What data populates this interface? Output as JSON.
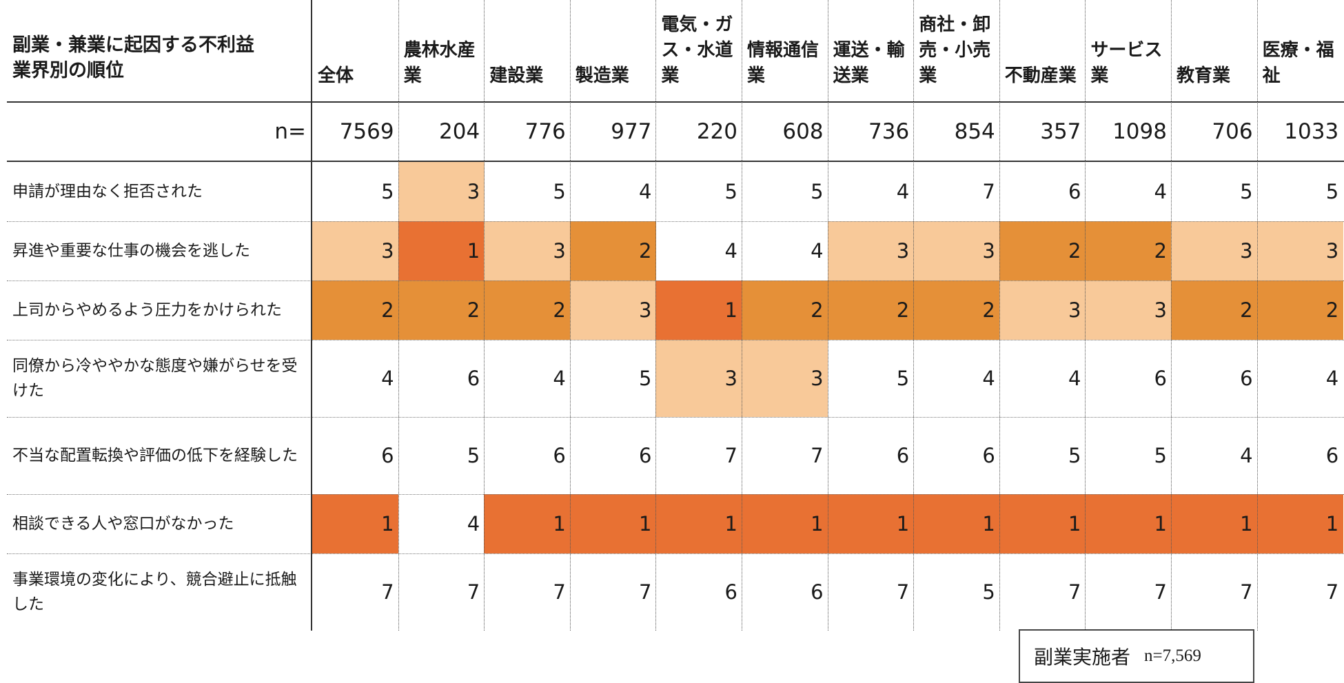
{
  "chart_data": {
    "type": "table",
    "title": "副業・兼業に起因する不利益\n業界別の順位",
    "n_label": "n=",
    "columns": [
      "全体",
      "農林水産\n業",
      "建設業",
      "製造業",
      "電気・ガ\nス・水道\n業",
      "情報通信\n業",
      "運送・輸\n送業",
      "商社・卸\n売・小売\n業",
      "不動産業",
      "サービス\n業",
      "教育業",
      "医療・福\n祉"
    ],
    "n": [
      7569,
      204,
      776,
      977,
      220,
      608,
      736,
      854,
      357,
      1098,
      706,
      1033
    ],
    "rows": [
      {
        "label": "申請が理由なく拒否された",
        "ranks": [
          5,
          3,
          5,
          4,
          5,
          5,
          4,
          7,
          6,
          4,
          5,
          5
        ]
      },
      {
        "label": "昇進や重要な仕事の機会を逃した",
        "ranks": [
          3,
          1,
          3,
          2,
          4,
          4,
          3,
          3,
          2,
          2,
          3,
          3
        ]
      },
      {
        "label": "上司からやめるよう圧力をかけられた",
        "ranks": [
          2,
          2,
          2,
          3,
          1,
          2,
          2,
          2,
          3,
          3,
          2,
          2
        ]
      },
      {
        "label": "同僚から冷ややかな態度や嫌がらせを受けた",
        "ranks": [
          4,
          6,
          4,
          5,
          3,
          3,
          5,
          4,
          4,
          6,
          6,
          4
        ]
      },
      {
        "label": "不当な配置転換や評価の低下を経験した",
        "ranks": [
          6,
          5,
          6,
          6,
          7,
          7,
          6,
          6,
          5,
          5,
          4,
          6
        ]
      },
      {
        "label": "相談できる人や窓口がなかった",
        "ranks": [
          1,
          4,
          1,
          1,
          1,
          1,
          1,
          1,
          1,
          1,
          1,
          1
        ]
      },
      {
        "label": "事業環境の変化により、競合避止に抵触した",
        "ranks": [
          7,
          7,
          7,
          7,
          6,
          6,
          7,
          5,
          7,
          7,
          7,
          7
        ]
      }
    ],
    "rank_colors": {
      "1": "#E87133",
      "2": "#E59038",
      "3": "#F8C999"
    }
  },
  "legend": {
    "label": "副業実施者",
    "n_text": "n=7,569"
  }
}
